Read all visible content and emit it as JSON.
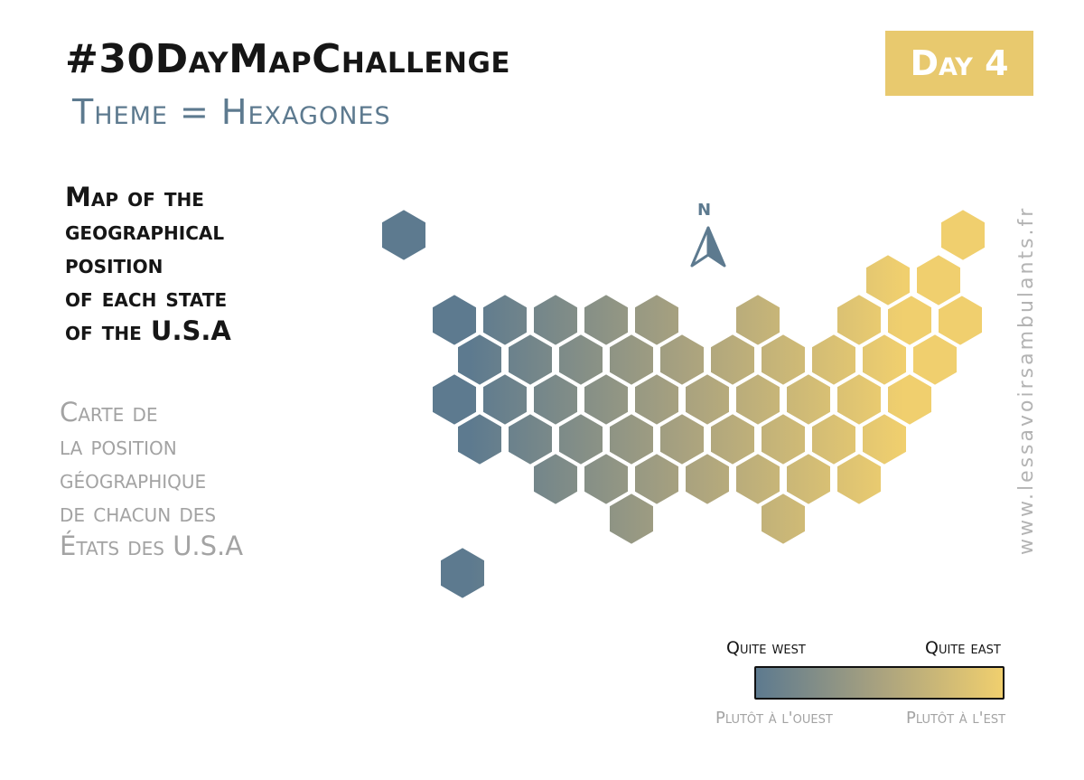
{
  "header": {
    "title": "#30DayMapChallenge",
    "theme": "Theme = Hexagones",
    "day_badge": "Day 4"
  },
  "description_en": [
    "Map of the",
    "geographical",
    "position",
    "of each state",
    "of the U.S.A"
  ],
  "description_fr": [
    "Carte de",
    "la position",
    "géographique",
    "de chacun des",
    "États des U.S.A"
  ],
  "compass": {
    "label": "N",
    "icon": "north-arrow-icon"
  },
  "side_url": "www.lessavoirsambulants.fr",
  "legend": {
    "west_en": "Quite west",
    "east_en": "Quite east",
    "west_fr": "Plutôt à l'ouest",
    "east_fr": "Plutôt à l'est",
    "color_west": "#5d7a8f",
    "color_east": "#f0cf6e"
  },
  "colors": {
    "title": "#161616",
    "theme": "#5d7a8f",
    "badge": "#e8c96e",
    "french_text": "#a3a3a3"
  }
}
